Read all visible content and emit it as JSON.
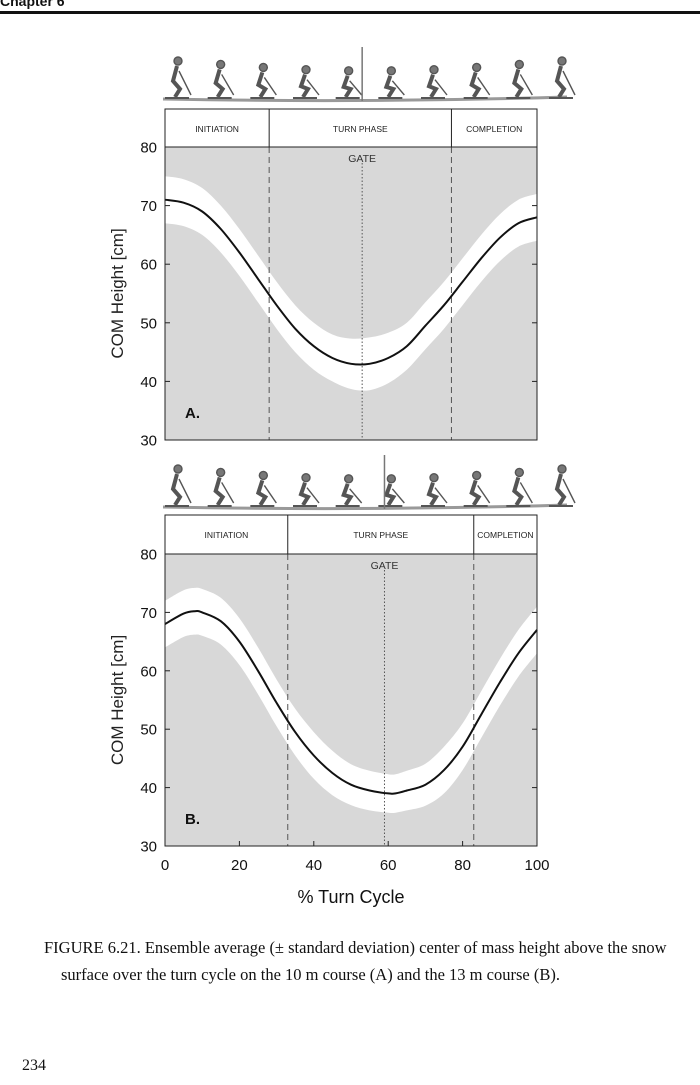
{
  "page": {
    "chapter_header": "Chapter 6",
    "page_number": "234",
    "caption": "FIGURE 6.21.  Ensemble average (± standard deviation) center of mass height above the snow surface over the turn cycle on the 10 m course (A) and the 13 m course (B)."
  },
  "colors": {
    "plot_bg": "#d8d8d8",
    "band": "#ffffff",
    "line": "#111111"
  },
  "chart_data": [
    {
      "type": "line",
      "panel_label": "A.",
      "ylabel": "COM Height [cm]",
      "ylim": [
        30,
        80
      ],
      "xlim": [
        0,
        100
      ],
      "yticks": [
        30,
        40,
        50,
        60,
        70,
        80
      ],
      "gate_label": "GATE",
      "gate_x": 53,
      "phases": [
        {
          "label": "INITIATION",
          "start": 0,
          "end": 28
        },
        {
          "label": "TURN PHASE",
          "start": 28,
          "end": 77
        },
        {
          "label": "COMPLETION",
          "start": 77,
          "end": 100
        }
      ],
      "x": [
        0,
        5,
        10,
        15,
        20,
        25,
        30,
        35,
        40,
        45,
        50,
        55,
        60,
        65,
        70,
        75,
        80,
        85,
        90,
        95,
        100
      ],
      "mean": [
        71,
        70.5,
        69,
        66,
        62,
        57.5,
        53,
        49,
        46,
        44,
        43,
        43,
        44,
        46,
        49.5,
        53,
        57,
        61,
        64.5,
        67,
        68
      ],
      "sd": [
        4,
        4,
        4,
        4,
        4,
        4,
        4,
        4,
        4,
        4,
        4.3,
        4.5,
        4.3,
        4,
        4,
        4,
        4,
        4,
        4,
        4,
        4
      ]
    },
    {
      "type": "line",
      "panel_label": "B.",
      "xlabel": "% Turn Cycle",
      "ylabel": "COM Height [cm]",
      "ylim": [
        30,
        80
      ],
      "xlim": [
        0,
        100
      ],
      "xticks": [
        0,
        20,
        40,
        60,
        80,
        100
      ],
      "yticks": [
        30,
        40,
        50,
        60,
        70,
        80
      ],
      "gate_label": "GATE",
      "gate_x": 59,
      "phases": [
        {
          "label": "INITIATION",
          "start": 0,
          "end": 33
        },
        {
          "label": "TURN PHASE",
          "start": 33,
          "end": 83
        },
        {
          "label": "COMPLETION",
          "start": 83,
          "end": 100
        }
      ],
      "x": [
        0,
        5,
        8,
        10,
        15,
        20,
        25,
        30,
        35,
        40,
        45,
        50,
        55,
        60,
        62,
        65,
        70,
        75,
        80,
        85,
        90,
        95,
        100
      ],
      "mean": [
        68,
        69.8,
        70.2,
        70,
        68.5,
        65,
        60,
        54.5,
        49.5,
        45.5,
        42.5,
        40.5,
        39.5,
        39,
        39,
        39.5,
        40.5,
        43,
        47,
        52.5,
        58,
        63,
        67
      ],
      "sd": [
        4,
        4,
        4,
        4,
        4,
        4,
        4,
        4,
        4,
        4,
        3.8,
        3.5,
        3.4,
        3.3,
        3.3,
        3.4,
        3.6,
        4,
        4,
        4,
        4,
        4,
        4
      ]
    }
  ]
}
